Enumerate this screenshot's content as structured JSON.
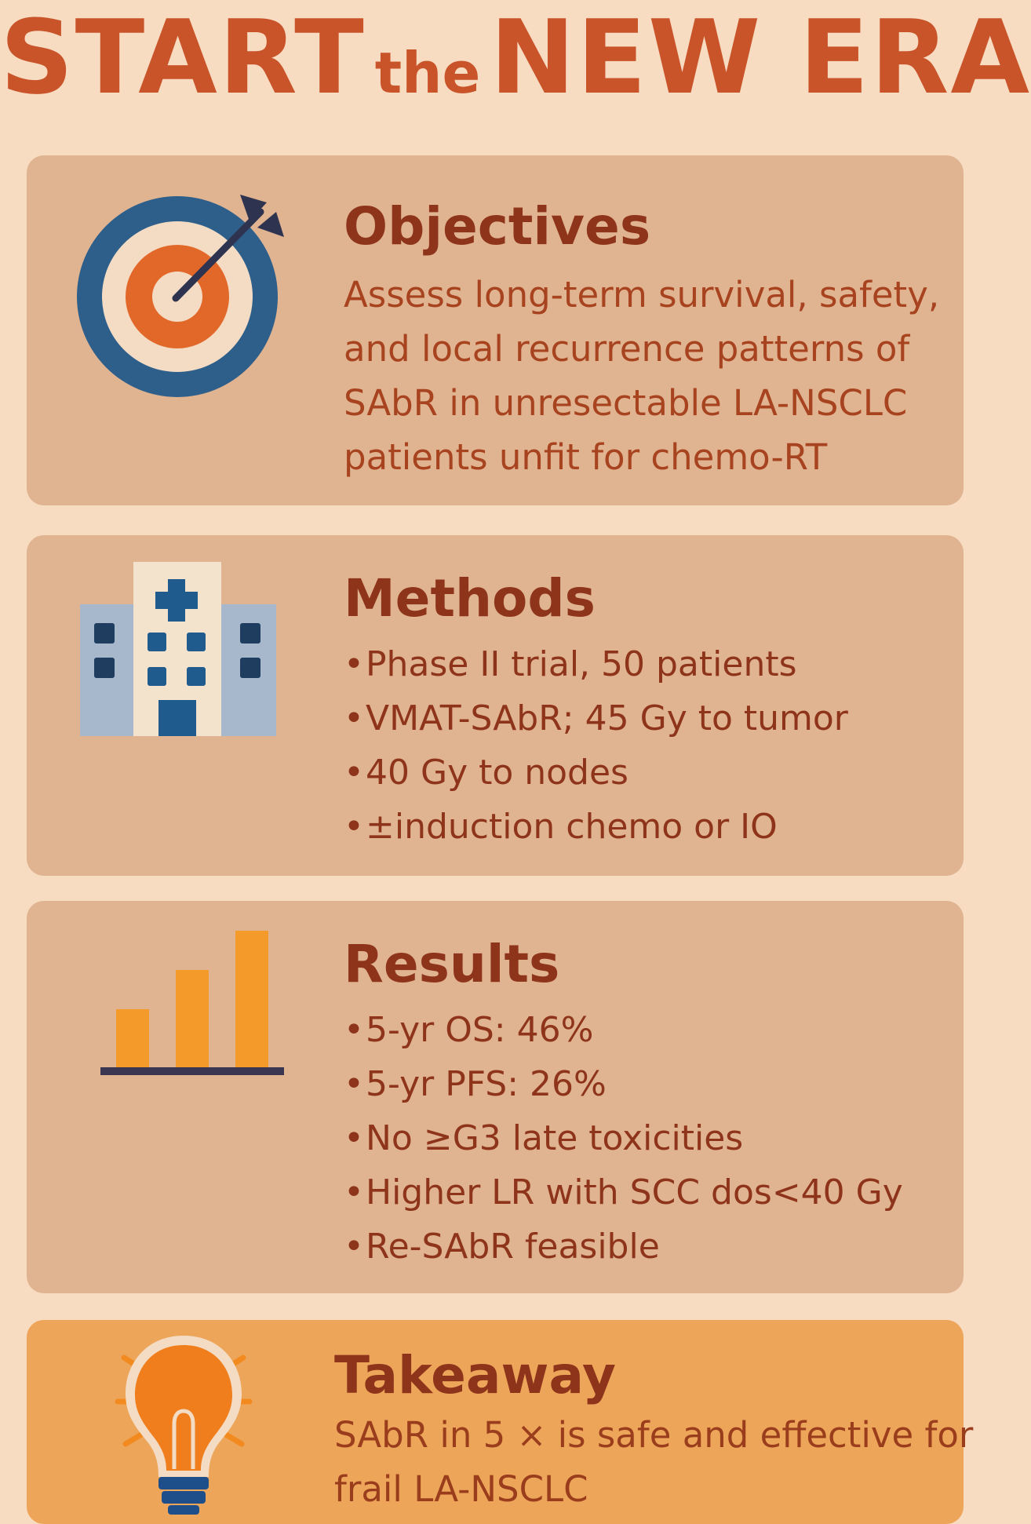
{
  "title": {
    "part1": "START",
    "part2": "the",
    "part3": "NEW ERA"
  },
  "objectives": {
    "heading": "Objectives",
    "lines": [
      "Assess long-term survival, safety,",
      "and local recurrence patterns of",
      "SAbR in unresectable LA-NSCLC",
      "patients unfit for chemo-RT"
    ],
    "icon": "target-icon"
  },
  "methods": {
    "heading": "Methods",
    "items": [
      "Phase II trial, 50 patients",
      "VMAT-SAbR; 45 Gy to tumor",
      "40 Gy to nodes",
      "±induction chemo or IO"
    ],
    "icon": "hospital-icon"
  },
  "results": {
    "heading": "Results",
    "items": [
      "5-yr OS: 46%",
      "5-yr PFS: 26%",
      "No ≥G3 late toxicities",
      "Higher LR with SCC  dos<40 Gy",
      "Re-SAbR feasible"
    ],
    "icon": "bar-chart-icon"
  },
  "takeaway": {
    "heading": "Takeaway",
    "lines": [
      "SAbR in 5 × is safe and effective for",
      "frail LA-NSCLC"
    ],
    "icon": "lightbulb-icon"
  },
  "colors": {
    "background": "#f8dcc2",
    "card": "#e0b391",
    "takeaway_card": "#eda55a",
    "title": "#c9542a",
    "heading": "#8e341b",
    "body_text": "#a8431f",
    "navy": "#1f5b8c",
    "orange": "#f39a2b"
  }
}
